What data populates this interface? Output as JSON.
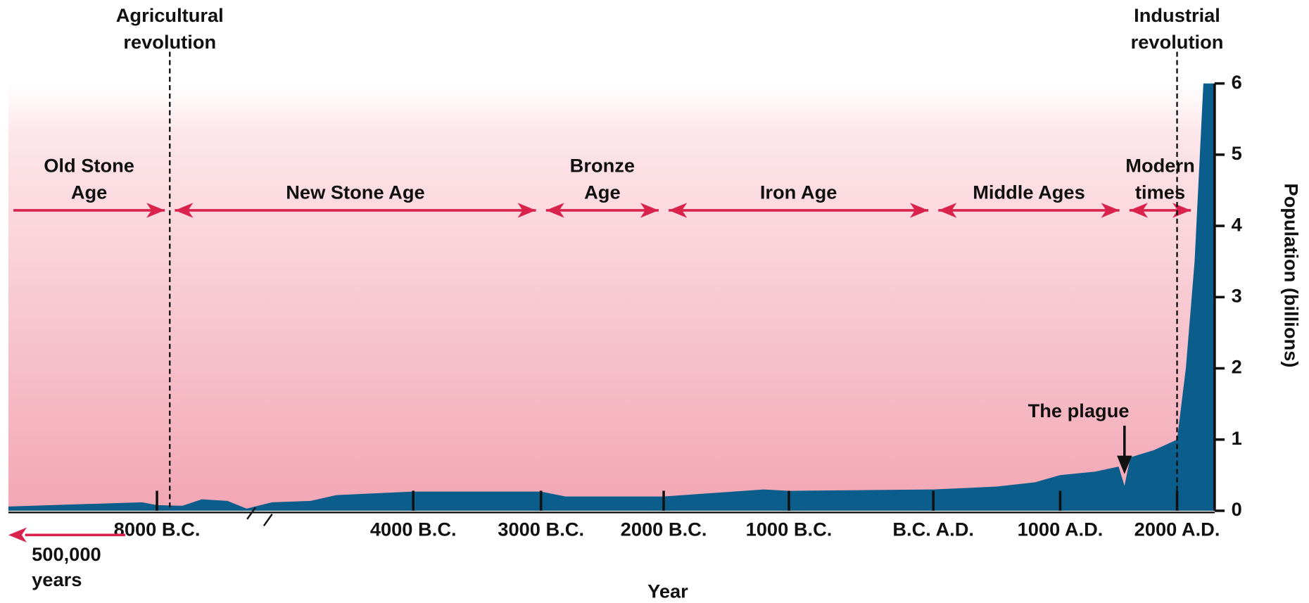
{
  "chart_data": {
    "type": "area",
    "x_title": "Year",
    "y_title": "Population (billions)",
    "color": "#0b5e8c",
    "x": [
      -10000,
      -8200,
      -8000,
      -7600,
      -7300,
      -6900,
      -6600,
      -6200,
      -5600,
      -5200,
      -4000,
      -3000,
      -2800,
      -2000,
      -1200,
      -1000,
      0,
      500,
      800,
      1000,
      1300,
      1500,
      1550,
      1600,
      1800,
      2000,
      2070,
      2140,
      2210,
      2300
    ],
    "values": [
      0.06,
      0.12,
      0.08,
      0.07,
      0.16,
      0.14,
      0.03,
      0.12,
      0.14,
      0.22,
      0.27,
      0.27,
      0.2,
      0.2,
      0.3,
      0.28,
      0.3,
      0.34,
      0.4,
      0.5,
      0.55,
      0.62,
      0.35,
      0.75,
      0.85,
      1.0,
      2.0,
      3.5,
      6.0,
      6.0
    ],
    "xlim": [
      -10000,
      2300
    ],
    "xticks": [
      {
        "value": -8000,
        "label": "8000 B.C."
      },
      {
        "value": -4000,
        "label": "4000 B.C."
      },
      {
        "value": -3000,
        "label": "3000 B.C."
      },
      {
        "value": -2000,
        "label": "2000 B.C."
      },
      {
        "value": -1000,
        "label": "1000 B.C."
      },
      {
        "value": 0,
        "label": "B.C. A.D."
      },
      {
        "value": 1000,
        "label": "1000 A.D."
      },
      {
        "value": 2000,
        "label": "2000 A.D."
      }
    ],
    "ylim": [
      0,
      6
    ],
    "yticks": [
      0,
      1,
      2,
      3,
      4,
      5,
      6
    ],
    "eras": [
      {
        "label": [
          "Old Stone",
          "Age"
        ],
        "start": -10000,
        "end": -7800
      },
      {
        "label": [
          "New Stone Age"
        ],
        "start": -7800,
        "end": -3000
      },
      {
        "label": [
          "Bronze",
          "Age"
        ],
        "start": -3000,
        "end": -2000
      },
      {
        "label": [
          "Iron Age"
        ],
        "start": -2000,
        "end": 0
      },
      {
        "label": [
          "Middle Ages"
        ],
        "start": 0,
        "end": 1550
      },
      {
        "label": [
          "Modern",
          "times"
        ],
        "start": 1550,
        "end": 2150
      }
    ],
    "markers": [
      {
        "x": -7800,
        "label": [
          "Agricultural",
          "revolution"
        ]
      },
      {
        "x": 2000,
        "label": [
          "Industrial",
          "revolution"
        ]
      }
    ],
    "plague": {
      "x": 1550,
      "label": "The plague"
    },
    "note": [
      "500,000",
      "years"
    ]
  }
}
